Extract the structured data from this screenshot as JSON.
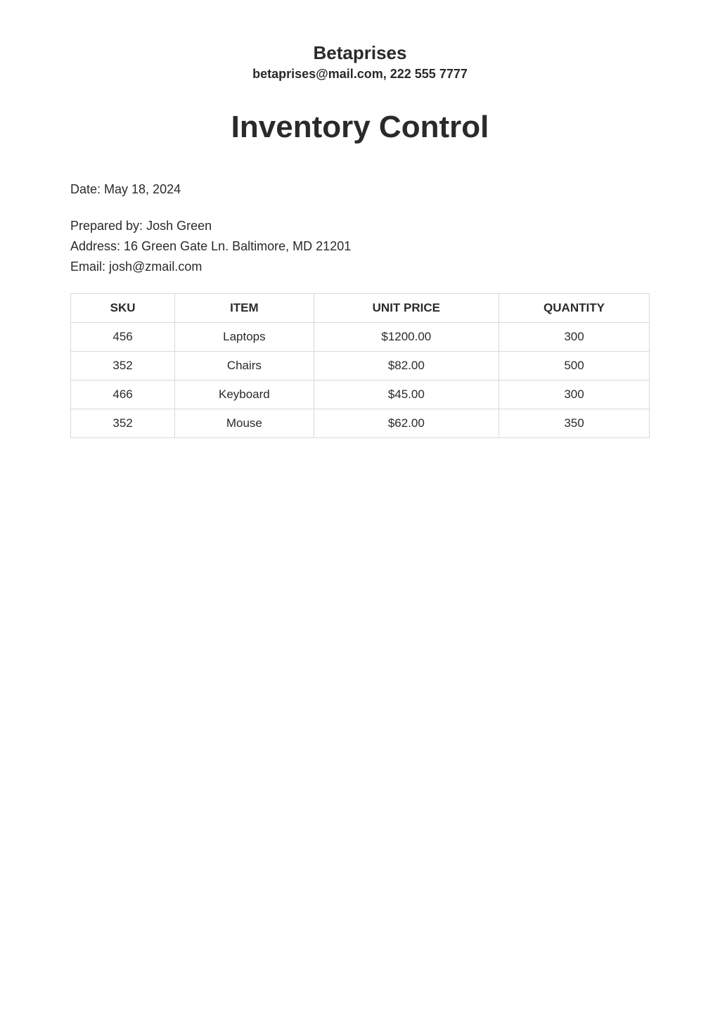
{
  "company": {
    "name": "Betaprises",
    "contact": "betaprises@mail.com, 222 555 7777"
  },
  "doc_title": "Inventory Control",
  "date": {
    "label": "Date: ",
    "value": "May 18, 2024"
  },
  "prepared": {
    "by_label": "Prepared by: ",
    "by_value": "Josh Green",
    "address_label": "Address: ",
    "address_value": "16 Green Gate Ln. Baltimore, MD 21201",
    "email_label": "Email: ",
    "email_value": "josh@zmail.com"
  },
  "table": {
    "columns": [
      "SKU",
      "ITEM",
      "UNIT PRICE",
      "QUANTITY"
    ],
    "rows": [
      [
        "456",
        "Laptops",
        "$1200.00",
        "300"
      ],
      [
        "352",
        "Chairs",
        "$82.00",
        "500"
      ],
      [
        "466",
        "Keyboard",
        "$45.00",
        "300"
      ],
      [
        "352",
        "Mouse",
        "$62.00",
        "350"
      ]
    ],
    "column_widths": [
      "18%",
      "24%",
      "32%",
      "26%"
    ],
    "border_color": "#d8d8d8",
    "header_fontsize": 17,
    "cell_fontsize": 17
  },
  "styles": {
    "background_color": "#ffffff",
    "text_color": "#2a2a2a",
    "company_name_fontsize": 26,
    "company_contact_fontsize": 18,
    "doc_title_fontsize": 44,
    "body_fontsize": 18
  }
}
